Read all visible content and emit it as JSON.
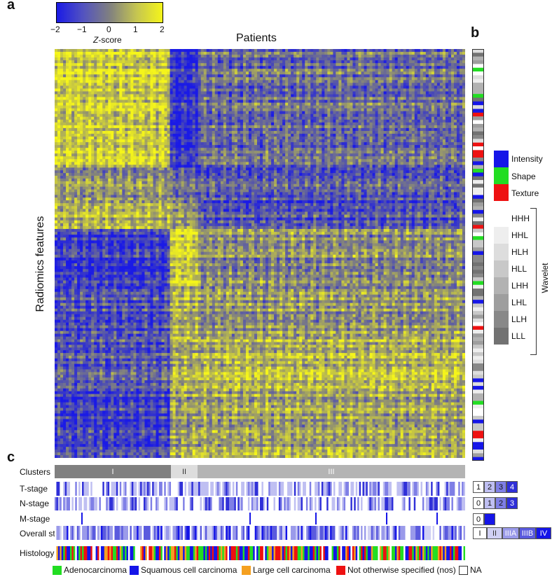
{
  "panels": {
    "a": "a",
    "b": "b",
    "c": "c"
  },
  "colorbar": {
    "ticks": [
      "−2",
      "−1",
      "0",
      "1",
      "2"
    ],
    "label_italic": "Z",
    "label_rest": "-score",
    "colors": {
      "low": "#1a1ae6",
      "mid": "#808080",
      "high": "#f5f51a"
    }
  },
  "heatmap": {
    "xlabel": "Patients",
    "ylabel": "Radiomics features"
  },
  "feature_legend": {
    "categories": [
      {
        "name": "Intensity",
        "color": "#1515e8"
      },
      {
        "name": "Shape",
        "color": "#22dd22"
      },
      {
        "name": "Texture",
        "color": "#ee1111"
      }
    ],
    "wavelet_label": "Wavelet",
    "wavelet": [
      {
        "name": "HHH",
        "color": "#ffffff"
      },
      {
        "name": "HHL",
        "color": "#eeeeee"
      },
      {
        "name": "HLH",
        "color": "#dddddd"
      },
      {
        "name": "HLL",
        "color": "#c8c8c8"
      },
      {
        "name": "LHH",
        "color": "#b2b2b2"
      },
      {
        "name": "LHL",
        "color": "#9e9e9e"
      },
      {
        "name": "LLH",
        "color": "#888888"
      },
      {
        "name": "LLL",
        "color": "#727272"
      }
    ]
  },
  "tracks": {
    "labels": [
      "Clusters",
      "T-stage",
      "N-stage",
      "M-stage",
      "Overall stage",
      "Histology"
    ],
    "clusters": [
      {
        "name": "I",
        "fraction": 0.28,
        "color": "#808080"
      },
      {
        "name": "II",
        "fraction": 0.065,
        "color": "#dddddd"
      },
      {
        "name": "III",
        "fraction": 0.655,
        "color": "#b4b4b4"
      }
    ]
  },
  "stage_legends": {
    "t_stage": [
      "1",
      "2",
      "3",
      "4"
    ],
    "n_stage": [
      "0",
      "1",
      "2",
      "3"
    ],
    "m_stage": [
      "0",
      "1"
    ],
    "overall": [
      "I",
      "II",
      "IIIA",
      "IIIB",
      "IV"
    ]
  },
  "histology_legend": [
    {
      "name": "Adenocarcinoma",
      "color": "#22dd22"
    },
    {
      "name": "Squamous cell carcinoma",
      "color": "#1515e8"
    },
    {
      "name": "Large cell carcinoma",
      "color": "#f5a020"
    },
    {
      "name": "Not otherwise specified (nos)",
      "color": "#ee1111"
    },
    {
      "name": "NA",
      "color": "#ffffff"
    }
  ],
  "chart_data": {
    "type": "heatmap",
    "title": "",
    "xlabel": "Patients",
    "ylabel": "Radiomics features",
    "value_range": [
      -2,
      2
    ],
    "colorbar_label": "Z-score",
    "patient_clusters": [
      "I",
      "II",
      "III"
    ],
    "cluster_fractions": [
      0.28,
      0.065,
      0.655
    ],
    "row_blocks": [
      {
        "rows_fraction": 0.29,
        "cluster_I": 1.3,
        "cluster_II": -1.6,
        "cluster_III": -0.4
      },
      {
        "rows_fraction": 0.08,
        "cluster_I": 0.4,
        "cluster_II": -0.2,
        "cluster_III": -0.6
      },
      {
        "rows_fraction": 0.07,
        "cluster_I": 0.9,
        "cluster_II": 0.3,
        "cluster_III": -0.9
      },
      {
        "rows_fraction": 0.14,
        "cluster_I": -1.3,
        "cluster_II": 1.5,
        "cluster_III": 0.2
      },
      {
        "rows_fraction": 0.13,
        "cluster_I": -1.0,
        "cluster_II": 0.8,
        "cluster_III": 0.3
      },
      {
        "rows_fraction": 0.12,
        "cluster_I": -0.8,
        "cluster_II": 0.6,
        "cluster_III": 0.9
      },
      {
        "rows_fraction": 0.17,
        "cluster_I": -1.2,
        "cluster_II": 0.5,
        "cluster_III": 0.6
      }
    ]
  }
}
